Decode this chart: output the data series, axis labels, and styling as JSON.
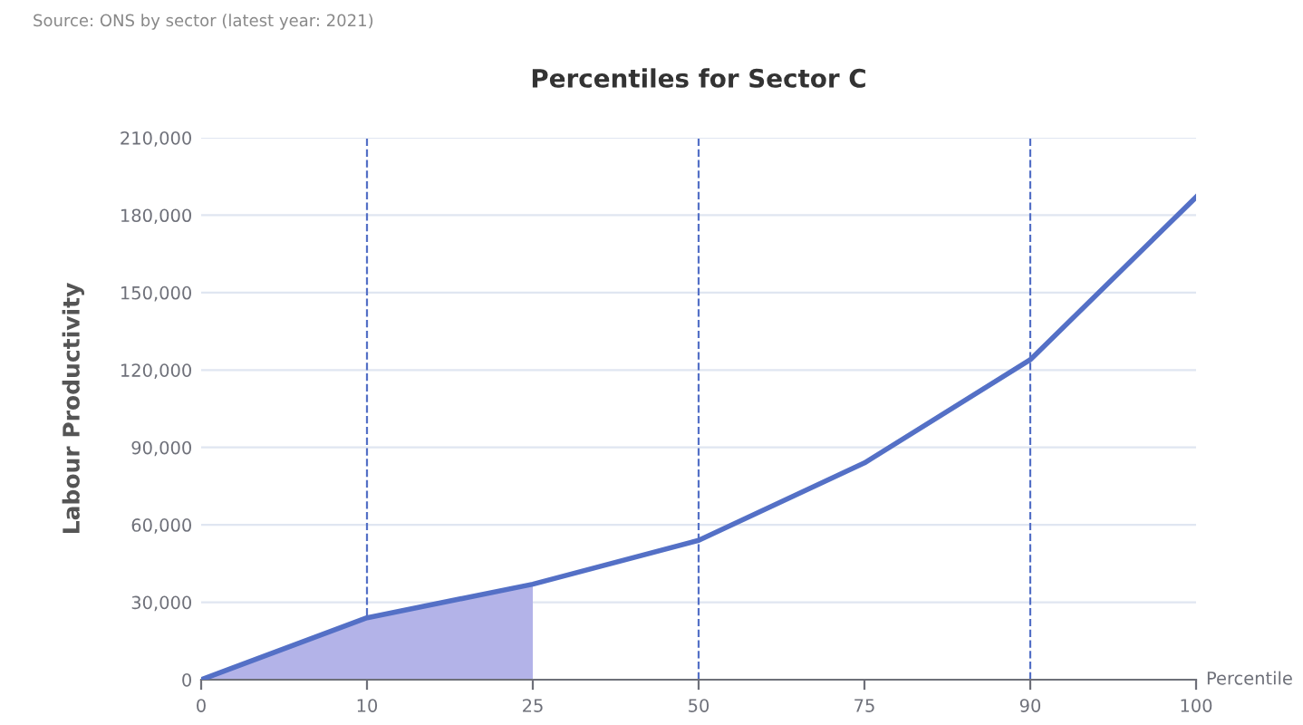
{
  "chart_data": {
    "type": "line",
    "title": "Percentiles for Sector C",
    "xlabel": "Percentile",
    "ylabel": "Labour Productivity",
    "annotations": [
      "Source: ONS by sector (latest year: 2021)"
    ],
    "categories": [
      "0",
      "10",
      "25",
      "50",
      "75",
      "90",
      "100"
    ],
    "series": [
      {
        "type": "area",
        "color": "#b3b3e8",
        "values": [
          0,
          24000,
          37000,
          null,
          null,
          null,
          null
        ]
      },
      {
        "color": "#5470c6",
        "values": [
          0,
          24000,
          37000,
          54000,
          84000,
          124000,
          187000
        ]
      }
    ],
    "ylim": [
      0,
      210000
    ],
    "yticks": [
      {
        "value": 0,
        "label": "0"
      },
      {
        "value": 30000,
        "label": "30,000"
      },
      {
        "value": 60000,
        "label": "60,000"
      },
      {
        "value": 90000,
        "label": "90,000"
      },
      {
        "value": 120000,
        "label": "120,000"
      },
      {
        "value": 150000,
        "label": "150,000"
      },
      {
        "value": 180000,
        "label": "180,000"
      },
      {
        "value": 210000,
        "label": "210,000"
      }
    ],
    "ref_lines": [
      {
        "axis": "x",
        "value": "10",
        "color": "#5470c6",
        "line_style": "dashed"
      },
      {
        "axis": "x",
        "value": "50",
        "color": "#5470c6",
        "line_style": "dashed"
      },
      {
        "axis": "x",
        "value": "90",
        "color": "#5470c6",
        "line_style": "dashed"
      }
    ],
    "grid": "y",
    "legend": false,
    "marker": "none",
    "line_style": "solid"
  }
}
